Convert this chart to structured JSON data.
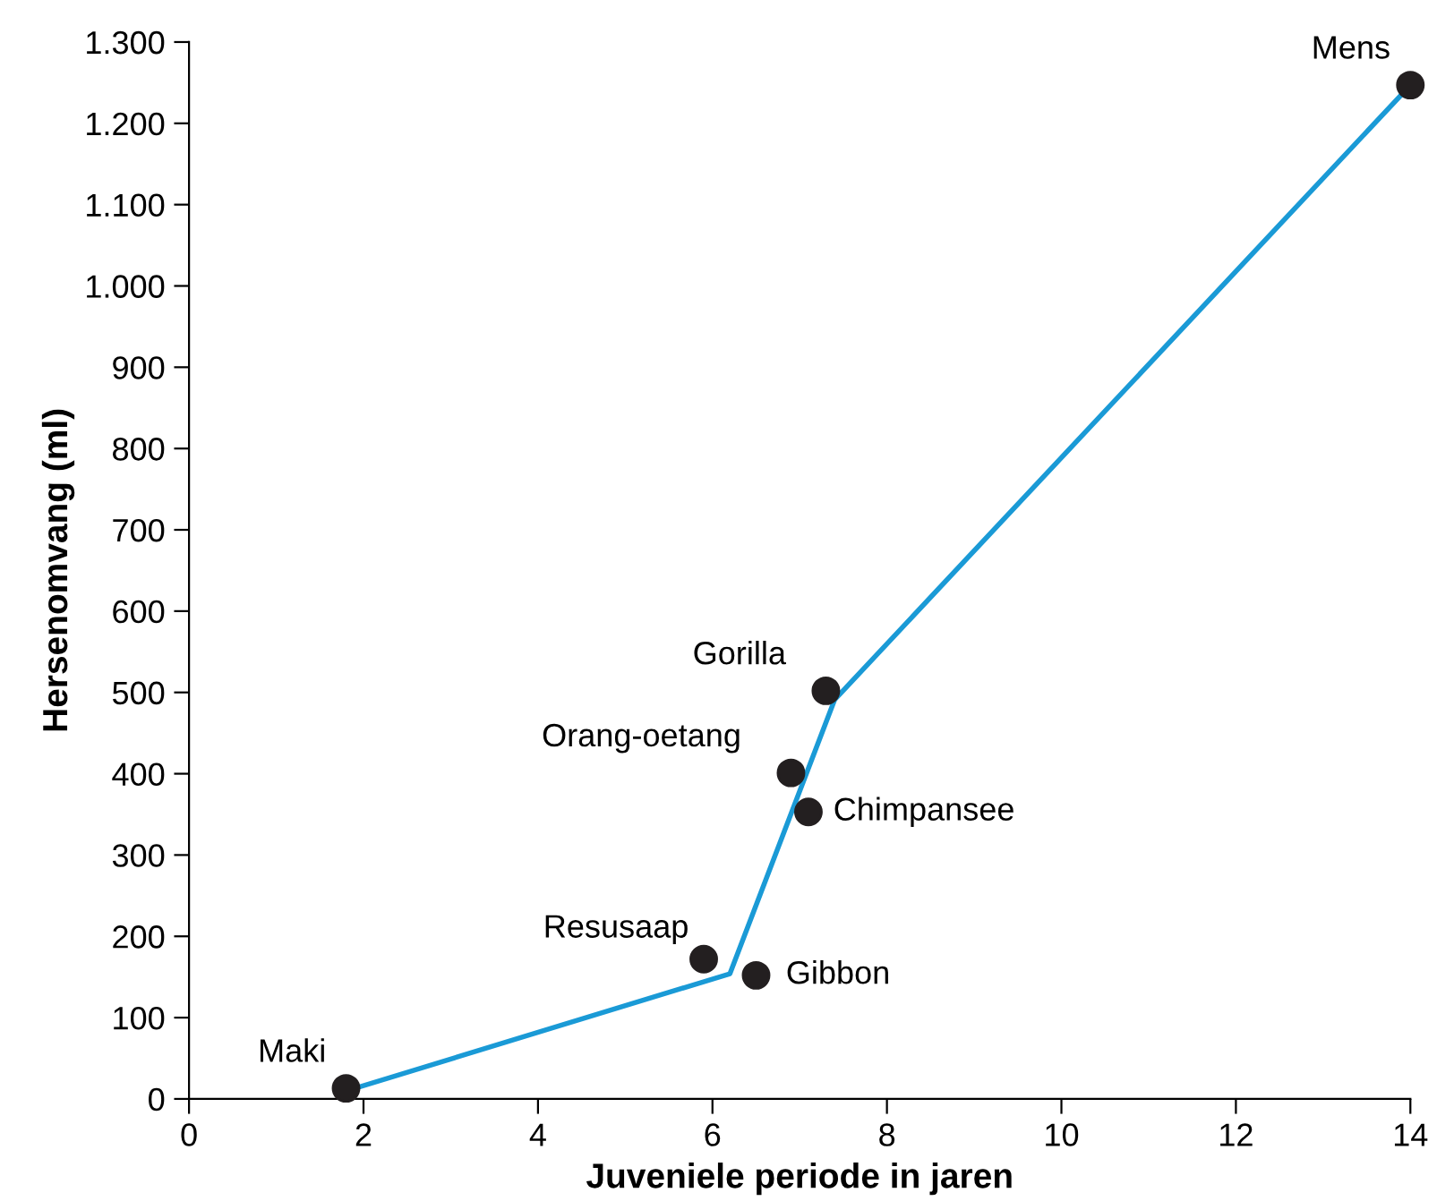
{
  "chart_data": {
    "type": "scatter",
    "xlabel": "Juveniele periode in jaren",
    "ylabel": "Hersenomvang (ml)",
    "xlim": [
      0,
      14
    ],
    "xticks": [
      0,
      2,
      4,
      6,
      8,
      10,
      12,
      14
    ],
    "ylim": [
      0,
      1300
    ],
    "yticks": [
      0,
      100,
      200,
      300,
      400,
      500,
      600,
      700,
      800,
      900,
      {
        "value": 1000,
        "label": "1.000"
      },
      {
        "value": 1100,
        "label": "1.100"
      },
      {
        "value": 1200,
        "label": "1.200"
      },
      {
        "value": 1300,
        "label": "1.300"
      }
    ],
    "grid": false,
    "legend": false,
    "series": [
      {
        "type": "line",
        "color": "#1a9ad6",
        "x": [
          1.9,
          6.2,
          7.4,
          14.0
        ],
        "values": [
          13,
          154,
          491,
          1247
        ],
        "marker": "none",
        "line_style": "solid"
      },
      {
        "color": "#231f20",
        "x": [
          1.8,
          5.9,
          6.5,
          6.9,
          7.1,
          7.3,
          14.0
        ],
        "values": [
          13,
          172,
          152,
          401,
          353,
          502,
          1247
        ],
        "marker": "circle"
      }
    ],
    "annotations": [
      {
        "text": "Maki",
        "x": 1.8,
        "y": 13
      },
      {
        "text": "Resusaap",
        "x": 5.9,
        "y": 172
      },
      {
        "text": "Gibbon",
        "x": 6.5,
        "y": 152
      },
      {
        "text": "Orang-oetang",
        "x": 6.9,
        "y": 401
      },
      {
        "text": "Chimpansee",
        "x": 7.1,
        "y": 353
      },
      {
        "text": "Gorilla",
        "x": 7.3,
        "y": 502
      },
      {
        "text": "Mens",
        "x": 14.0,
        "y": 1247
      }
    ]
  }
}
